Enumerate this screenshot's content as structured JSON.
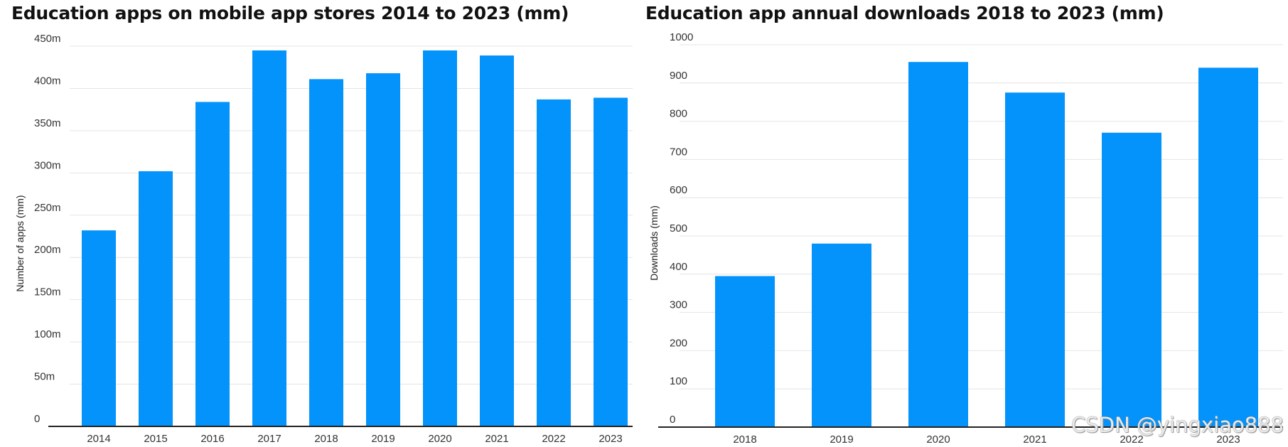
{
  "chart_data": [
    {
      "type": "bar",
      "title": "Education apps on mobile app stores 2014 to 2023 (mm)",
      "xlabel": "",
      "ylabel": "Number of apps (mm)",
      "categories": [
        "2014",
        "2015",
        "2016",
        "2017",
        "2018",
        "2019",
        "2020",
        "2021",
        "2022",
        "2023"
      ],
      "values": [
        232,
        302,
        384,
        445,
        411,
        418,
        445,
        439,
        387,
        389
      ],
      "ylim": [
        0,
        450
      ],
      "yticks": [
        0,
        50,
        100,
        150,
        200,
        250,
        300,
        350,
        400,
        450
      ],
      "ytick_labels": [
        "0",
        "50m",
        "100m",
        "150m",
        "200m",
        "250m",
        "300m",
        "350m",
        "400m",
        "450m"
      ],
      "grid": true,
      "bar_color": "#0393FB"
    },
    {
      "type": "bar",
      "title": "Education app annual downloads 2018 to 2023 (mm)",
      "xlabel": "",
      "ylabel": "Downloads (mm)",
      "categories": [
        "2018",
        "2019",
        "2020",
        "2021",
        "2022",
        "2023"
      ],
      "values": [
        395,
        480,
        955,
        875,
        770,
        940
      ],
      "ylim": [
        0,
        1000
      ],
      "yticks": [
        0,
        100,
        200,
        300,
        400,
        500,
        600,
        700,
        800,
        900,
        1000
      ],
      "ytick_labels": [
        "0",
        "100",
        "200",
        "300",
        "400",
        "500",
        "600",
        "700",
        "800",
        "900",
        "1000"
      ],
      "grid": true,
      "bar_color": "#0393FB"
    }
  ],
  "watermark": "CSDN @yingxiao888"
}
